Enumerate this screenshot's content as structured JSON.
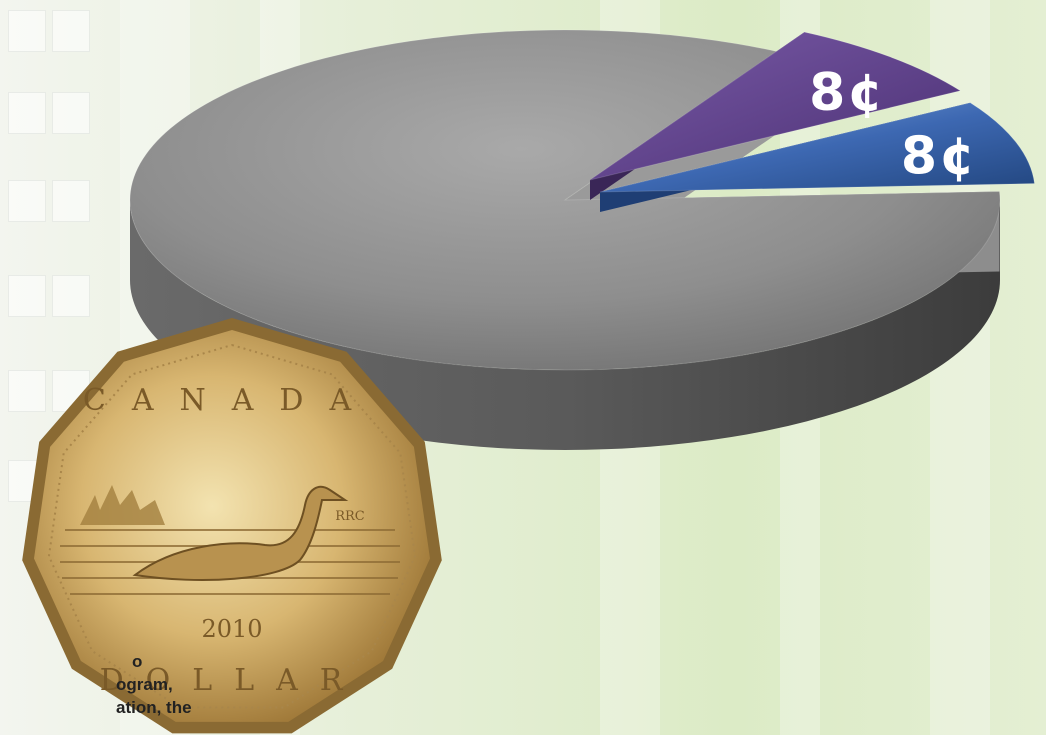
{
  "chart_data": {
    "type": "pie",
    "style": "3d-exploded",
    "slices": [
      {
        "label": "",
        "value": 84,
        "color": "#7a7a7a"
      },
      {
        "label": "8¢",
        "value": 8,
        "color": "#5b3f86"
      },
      {
        "label": "8¢",
        "value": 8,
        "color": "#2f5aa3"
      }
    ],
    "title": "",
    "legend": "none"
  },
  "coin": {
    "country": "CANADA",
    "year": "2010",
    "denomination": "DOLLAR",
    "mint_mark": "RRC"
  },
  "caption": {
    "lines": [
      "o",
      "ogram,",
      "ation, the"
    ]
  },
  "colors": {
    "background": "#e2edd3",
    "pie_gray": "#7a7a7a",
    "slice_purple": "#5b3f86",
    "slice_blue": "#2f5aa3",
    "coin_gold": "#c9a055"
  }
}
